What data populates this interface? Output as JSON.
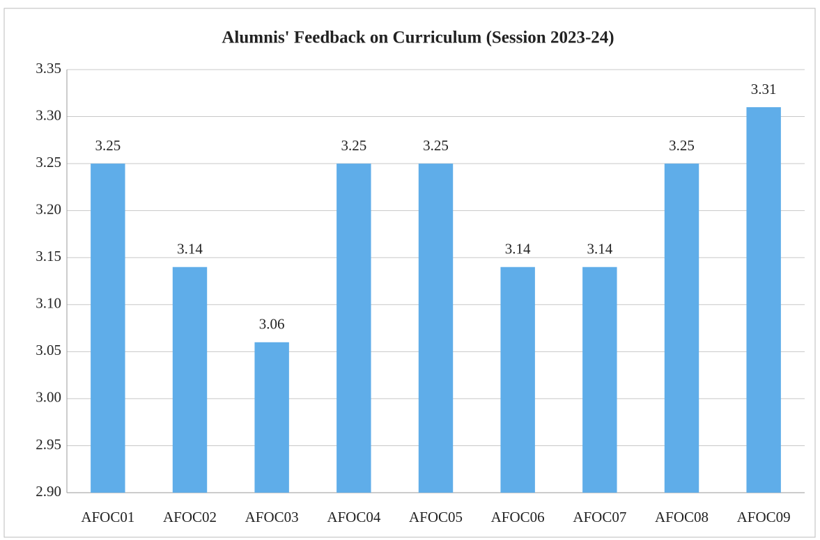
{
  "chart_data": {
    "type": "bar",
    "title": "Alumnis' Feedback on Curriculum (Session 2023-24)",
    "categories": [
      "AFOC01",
      "AFOC02",
      "AFOC03",
      "AFOC04",
      "AFOC05",
      "AFOC06",
      "AFOC07",
      "AFOC08",
      "AFOC09"
    ],
    "values": [
      3.25,
      3.14,
      3.06,
      3.25,
      3.25,
      3.14,
      3.14,
      3.25,
      3.31
    ],
    "color": "#5fade9",
    "ylim": [
      2.9,
      3.35
    ],
    "yticks": [
      {
        "value": 2.9,
        "label": "2.90"
      },
      2.95,
      {
        "value": 3.0,
        "label": "3.00"
      },
      3.05,
      {
        "value": 3.1,
        "label": "3.10"
      },
      3.15,
      {
        "value": 3.2,
        "label": "3.20"
      },
      3.25,
      {
        "value": 3.3,
        "label": "3.30"
      },
      3.35
    ],
    "grid": true
  }
}
